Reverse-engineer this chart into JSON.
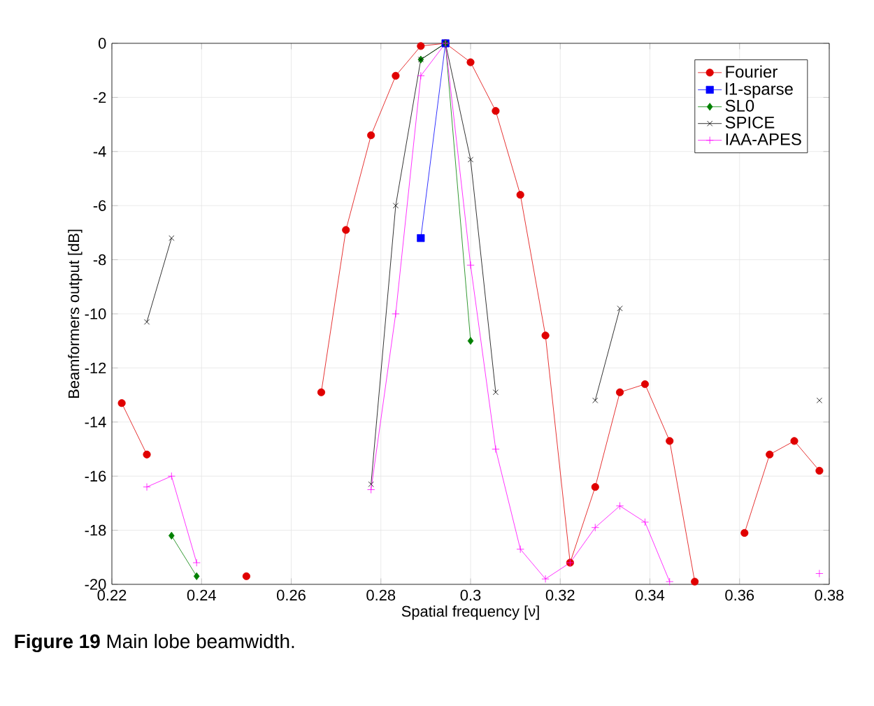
{
  "chart_data": {
    "type": "line",
    "xlabel": "Spatial frequency [ν]",
    "ylabel": "Beamformers output [dB]",
    "annotations": [
      "**Figure 19** Main lobe beamwidth."
    ],
    "x": [
      0.2222,
      0.2278,
      0.2333,
      0.2389,
      0.2444,
      0.25,
      0.2556,
      0.2611,
      0.2667,
      0.2722,
      0.2778,
      0.2833,
      0.2889,
      0.2944,
      0.3,
      0.3056,
      0.3111,
      0.3167,
      0.3222,
      0.3278,
      0.3333,
      0.3389,
      0.3444,
      0.35,
      0.3556,
      0.3611,
      0.3667,
      0.3722,
      0.3778
    ],
    "series": [
      {
        "name": "Fourier",
        "color": "#e00000",
        "marker": "circle",
        "values": [
          -13.3,
          -15.2,
          null,
          null,
          null,
          -19.7,
          null,
          null,
          -12.9,
          -6.9,
          -3.4,
          -1.2,
          -0.1,
          0,
          -0.7,
          -2.5,
          -5.6,
          -10.8,
          -19.2,
          -16.4,
          -12.9,
          -12.6,
          -14.7,
          -19.9,
          null,
          -18.1,
          -15.2,
          -14.7,
          -15.8
        ]
      },
      {
        "name": "l1-sparse",
        "color": "#0000ff",
        "marker": "square",
        "values": [
          null,
          null,
          null,
          null,
          null,
          null,
          null,
          null,
          null,
          null,
          null,
          null,
          -7.2,
          0,
          null,
          null,
          null,
          null,
          null,
          null,
          null,
          null,
          null,
          null,
          null,
          null,
          null,
          null,
          null
        ]
      },
      {
        "name": "SL0",
        "color": "#008000",
        "marker": "diamond",
        "values": [
          null,
          null,
          -18.2,
          -19.7,
          null,
          null,
          null,
          null,
          null,
          null,
          null,
          null,
          -0.6,
          0,
          -11.0,
          null,
          null,
          null,
          null,
          null,
          null,
          null,
          null,
          null,
          null,
          null,
          null,
          null,
          null
        ]
      },
      {
        "name": "SPICE",
        "color": "#000000",
        "marker": "cross",
        "values": [
          null,
          -10.3,
          -7.2,
          null,
          null,
          null,
          null,
          null,
          null,
          null,
          -16.3,
          -6.0,
          -0.6,
          0,
          -4.3,
          -12.9,
          null,
          null,
          null,
          -13.2,
          -9.8,
          null,
          null,
          null,
          null,
          null,
          null,
          null,
          -13.2
        ]
      },
      {
        "name": "IAA-APES",
        "color": "#ff00ff",
        "marker": "plus",
        "values": [
          null,
          -16.4,
          -16.0,
          -19.2,
          null,
          null,
          null,
          null,
          null,
          null,
          -16.5,
          -10.0,
          -1.2,
          0,
          -8.2,
          -15.0,
          -18.7,
          -19.8,
          -19.2,
          -17.9,
          -17.1,
          -17.7,
          -19.9,
          null,
          null,
          null,
          null,
          null,
          -19.6
        ]
      }
    ],
    "xlim": [
      0.22,
      0.38
    ],
    "xticks": [
      0.22,
      0.24,
      0.26,
      0.28,
      0.3,
      0.32,
      0.34,
      0.36,
      0.38
    ],
    "ylim": [
      -20,
      0
    ],
    "yticks": [
      -20,
      -18,
      -16,
      -14,
      -12,
      -10,
      -8,
      -6,
      -4,
      -2,
      0
    ],
    "grid": true,
    "legend": "top right",
    "line_style": "solid"
  }
}
